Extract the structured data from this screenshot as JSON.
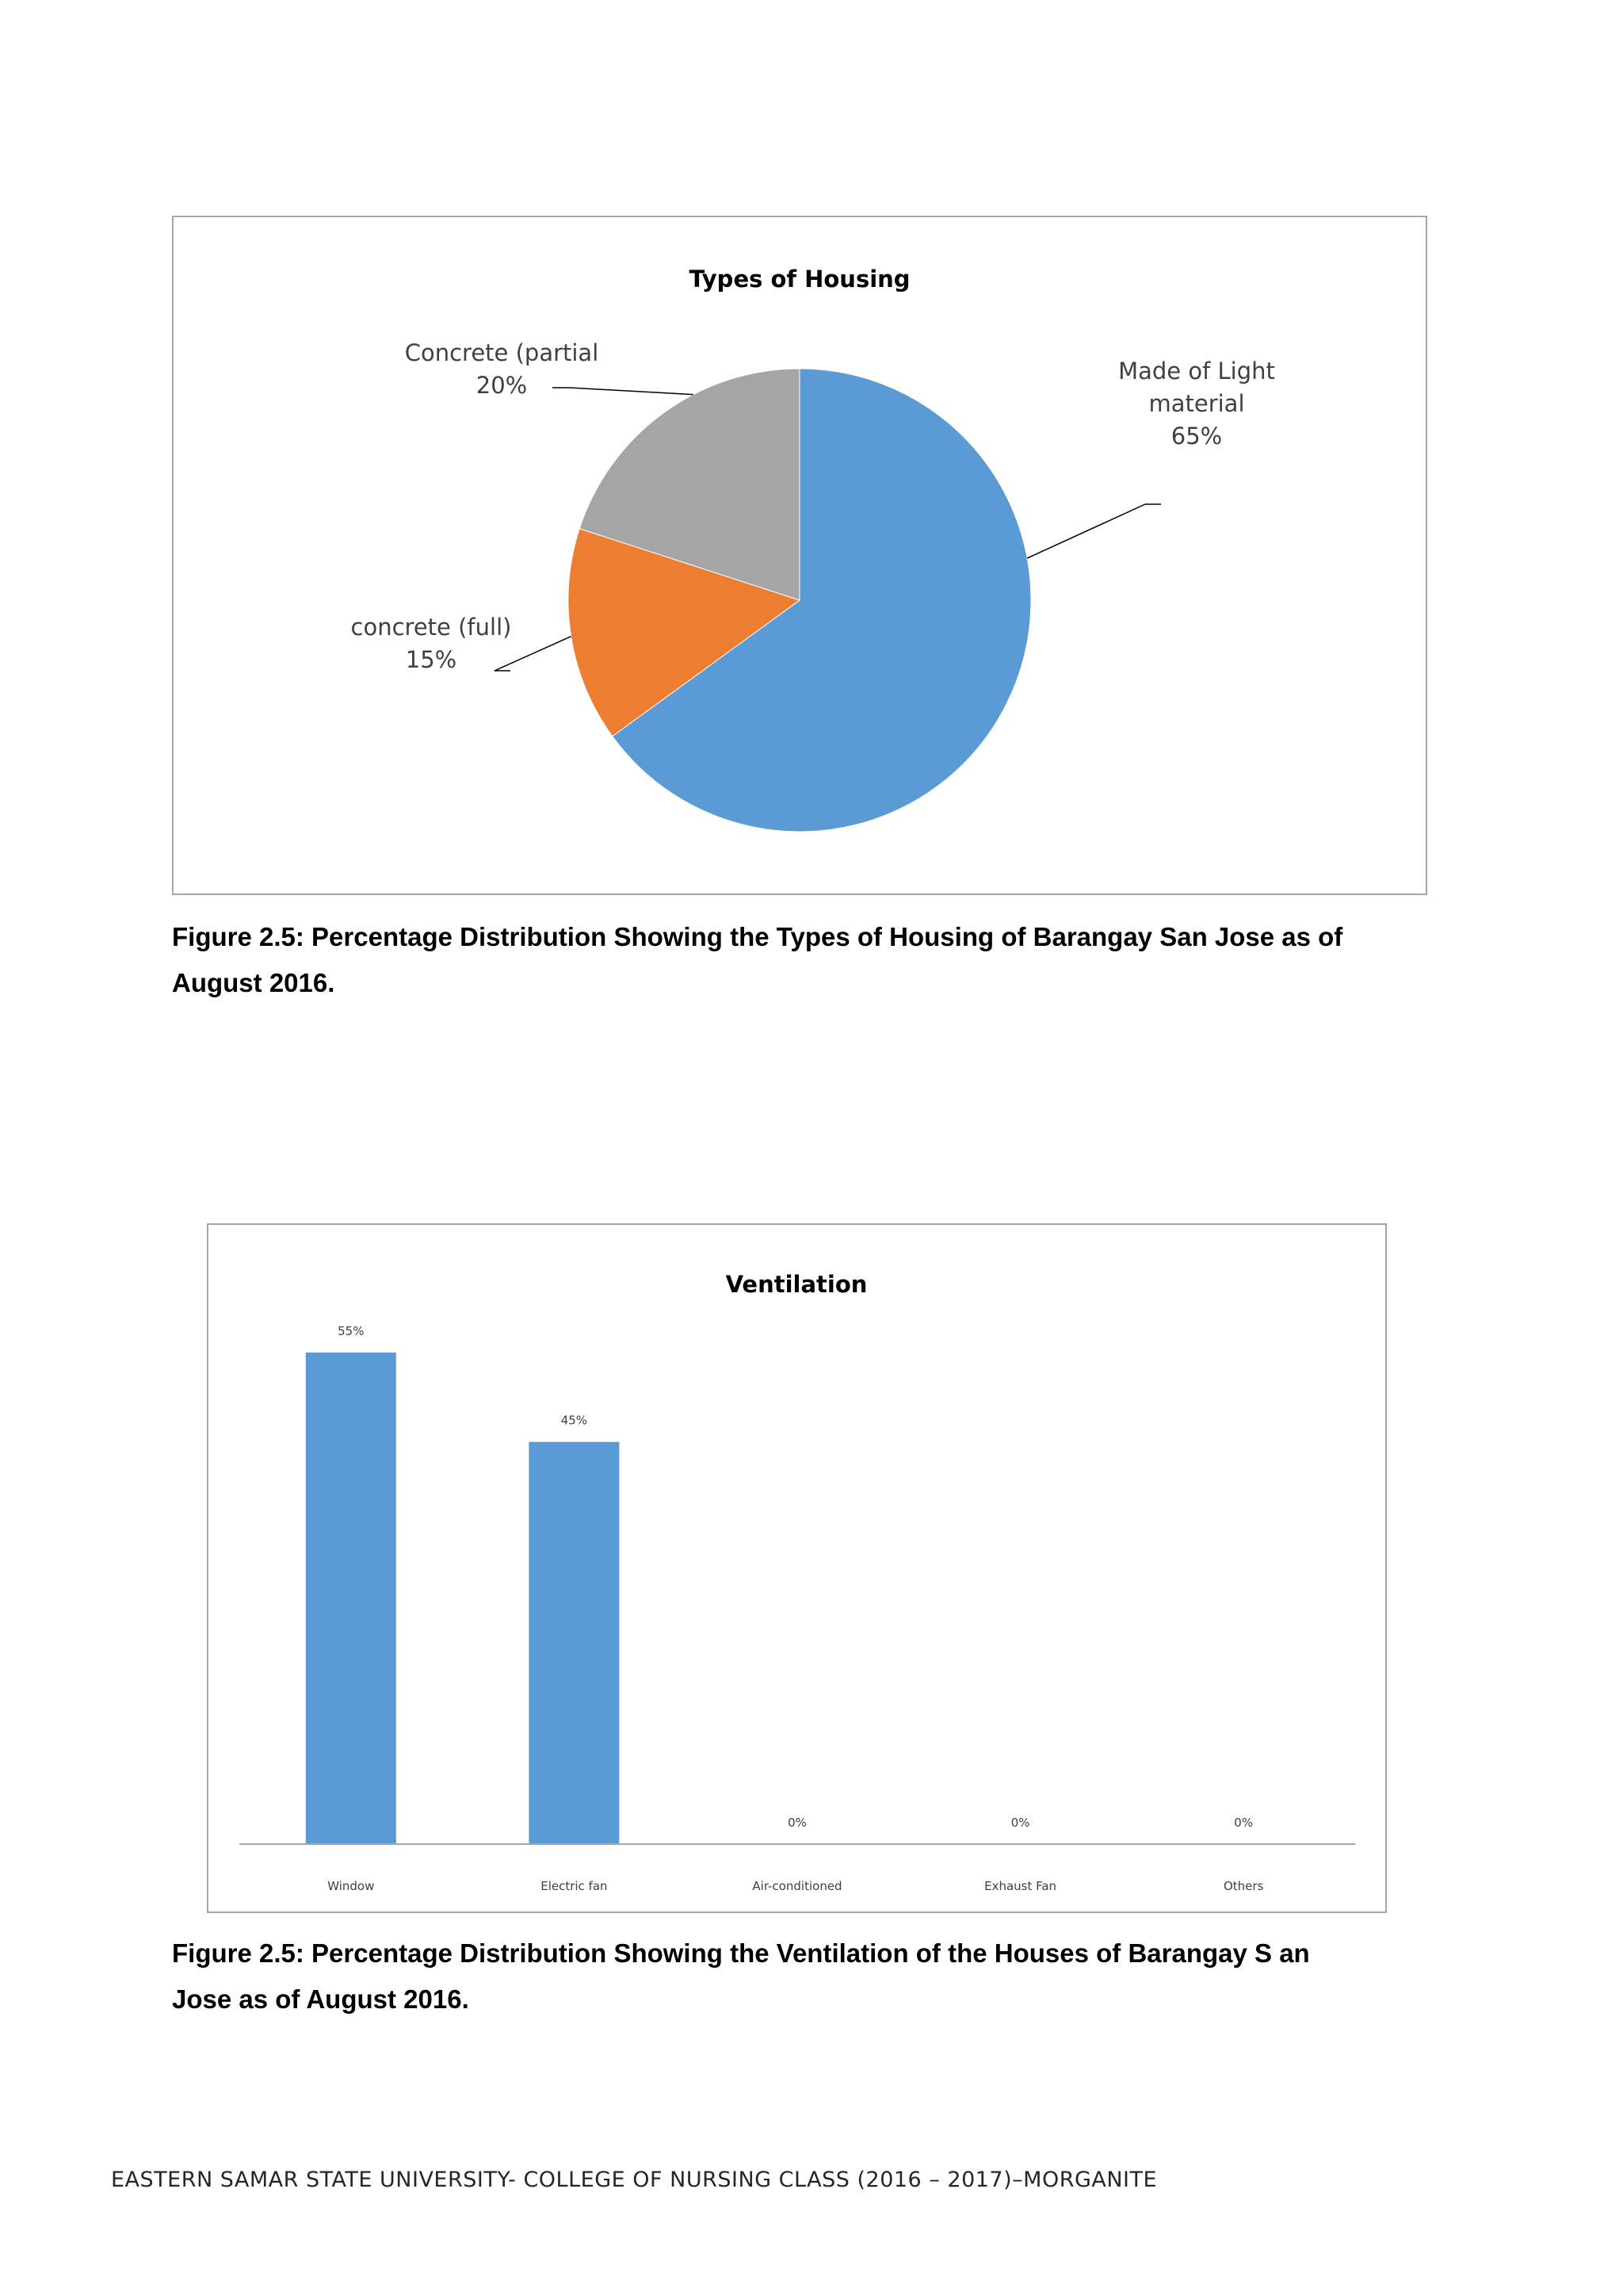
{
  "chart_data": [
    {
      "type": "pie",
      "title": "Types of Housing",
      "categories": [
        "Made of Light material",
        "concrete (full)",
        "Concrete (partial"
      ],
      "values": [
        65,
        15,
        20
      ],
      "label_lines": [
        [
          "Made of Light",
          "material",
          "65%"
        ],
        [
          "concrete (full)",
          "15%"
        ],
        [
          "Concrete (partial",
          "20%"
        ]
      ],
      "colors": [
        "#5b9bd5",
        "#ed7d31",
        "#a5a5a5"
      ],
      "start": "top, clockwise"
    },
    {
      "type": "bar",
      "title": "Ventilation",
      "categories": [
        "Window",
        "Electric fan",
        "Air-conditioned",
        "Exhaust Fan",
        "Others"
      ],
      "values": [
        55,
        45,
        0,
        0,
        0
      ],
      "data_labels": [
        "55%",
        "45%",
        "0%",
        "0%",
        "0%"
      ],
      "ylim": [
        0,
        60
      ],
      "grid": false,
      "color": "#5b9bd5"
    }
  ],
  "captions": {
    "housing": [
      "Figure 2.5:  Percentage Distribution  Showing the  Types  of  Housing  of Barangay San Jose  as of",
      "August  2016."
    ],
    "ventilation": [
      "Figure 2.5:  Percentage Distribution  Showing the  Ventilation of the  Houses  of Barangay S an",
      "Jose  as of August  2016."
    ]
  },
  "footer": "EASTERN SAMAR STATE UNIVERSITY- COLLEGE OF NURSING CLASS (2016 – 2017)–MORGANITE"
}
